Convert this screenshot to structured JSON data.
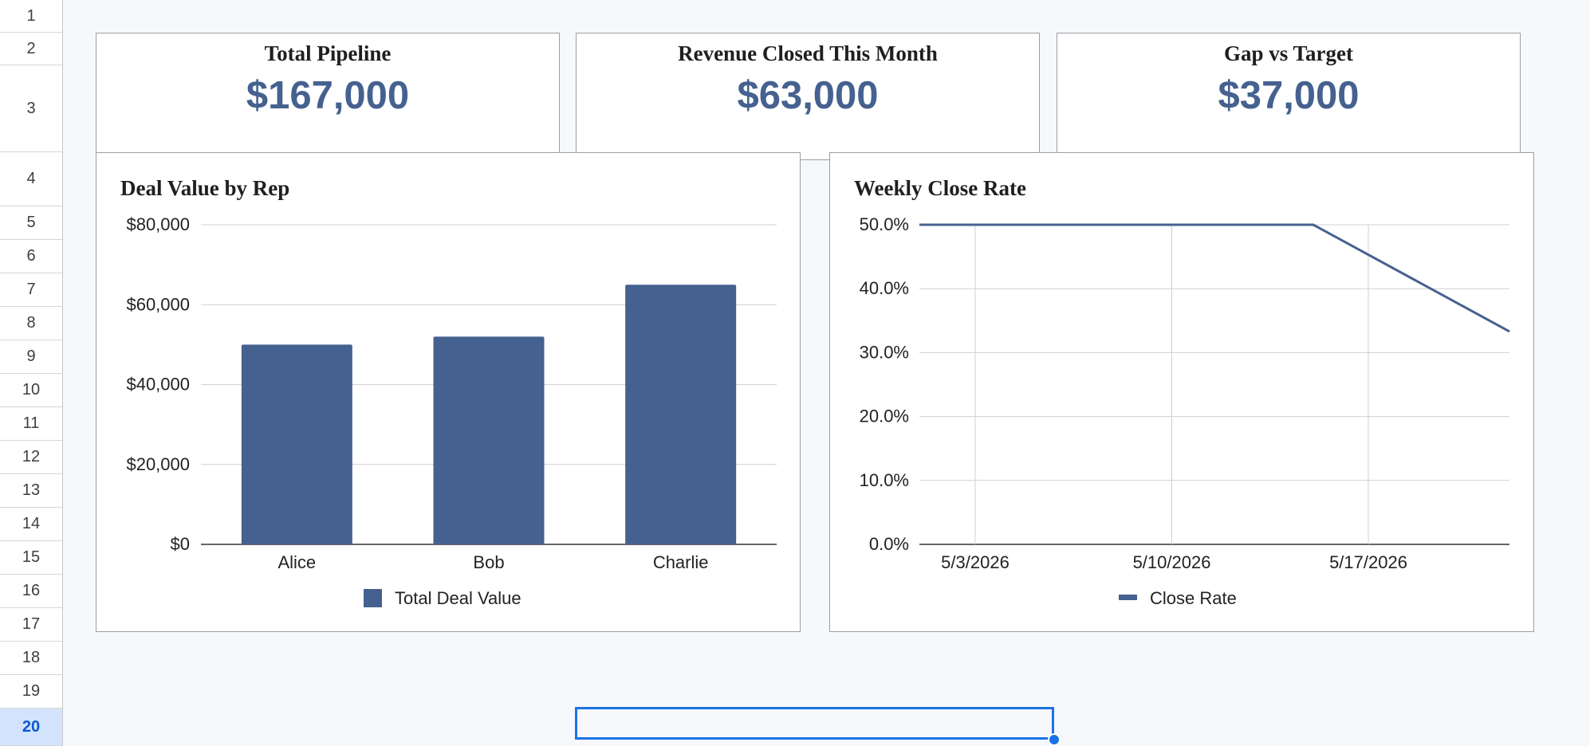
{
  "rows": [
    "1",
    "2",
    "3",
    "4",
    "5",
    "6",
    "7",
    "8",
    "9",
    "10",
    "11",
    "12",
    "13",
    "14",
    "15",
    "16",
    "17",
    "18",
    "19",
    "20"
  ],
  "selected_row": "20",
  "kpis": [
    {
      "title": "Total Pipeline",
      "value": "$167,000"
    },
    {
      "title": "Revenue Closed This Month",
      "value": "$63,000"
    },
    {
      "title": "Gap vs Target",
      "value": "$37,000"
    }
  ],
  "colors": {
    "accent": "#45618f",
    "selection": "#1a73e8",
    "grid": "#d9d9d9"
  },
  "chart_data": [
    {
      "type": "bar",
      "title": "Deal Value by Rep",
      "categories": [
        "Alice",
        "Bob",
        "Charlie"
      ],
      "series": [
        {
          "name": "Total Deal Value",
          "values": [
            50000,
            52000,
            65000
          ]
        }
      ],
      "ylim": [
        0,
        80000
      ],
      "yticks": [
        "$0",
        "$20,000",
        "$40,000",
        "$60,000",
        "$80,000"
      ],
      "legend": "bottom",
      "grid": true
    },
    {
      "type": "line",
      "title": "Weekly Close Rate",
      "x": [
        "5/3/2026",
        "5/10/2026",
        "5/17/2026",
        "5/24/2026"
      ],
      "xticks": [
        "5/3/2026",
        "5/10/2026",
        "5/17/2026"
      ],
      "series": [
        {
          "name": "Close Rate",
          "values": [
            0.5,
            0.5,
            0.5,
            0.333
          ]
        }
      ],
      "ylim": [
        0,
        0.5
      ],
      "yticks": [
        "0.0%",
        "10.0%",
        "20.0%",
        "30.0%",
        "40.0%",
        "50.0%"
      ],
      "legend": "bottom",
      "grid": true
    }
  ]
}
